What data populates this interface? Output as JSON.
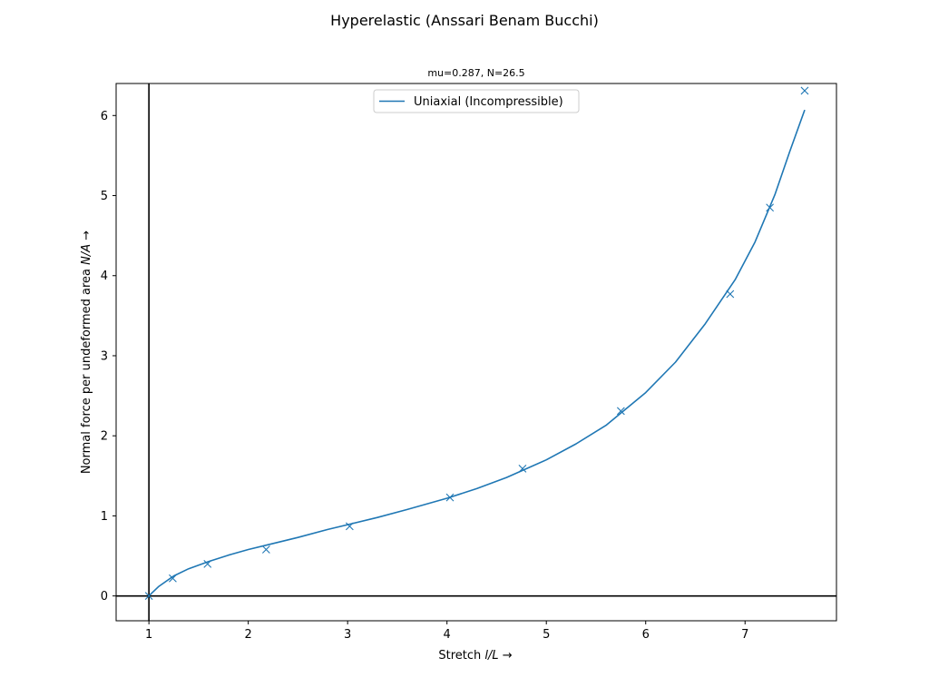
{
  "figure": {
    "title": "Hyperelastic (Anssari Benam Bucchi)",
    "subtitle": "mu=0.287, N=26.5"
  },
  "chart_data": {
    "type": "line",
    "title": "Hyperelastic (Anssari Benam Bucchi)",
    "subtitle": "mu=0.287, N=26.5",
    "xlabel": "Stretch l/L →",
    "ylabel": "Normal force per undeformed area N/A →",
    "xlim": [
      0.67,
      7.92
    ],
    "ylim": [
      -0.31,
      6.4
    ],
    "xticks": [
      1,
      2,
      3,
      4,
      5,
      6,
      7
    ],
    "yticks": [
      0,
      1,
      2,
      3,
      4,
      5,
      6
    ],
    "grid": false,
    "reference_lines": {
      "x": 1,
      "y": 0
    },
    "legend": {
      "position": "top-center",
      "entries": [
        "Uniaxial (Incompressible)"
      ]
    },
    "series": [
      {
        "name": "Uniaxial (Incompressible)",
        "kind": "line",
        "color": "#1f77b4",
        "x": [
          1.0,
          1.1,
          1.25,
          1.4,
          1.6,
          1.8,
          2.0,
          2.2,
          2.5,
          2.8,
          3.0,
          3.3,
          3.6,
          4.0,
          4.3,
          4.6,
          5.0,
          5.3,
          5.6,
          6.0,
          6.3,
          6.6,
          6.9,
          7.1,
          7.3,
          7.45,
          7.6
        ],
        "y": [
          0.0,
          0.12,
          0.25,
          0.34,
          0.43,
          0.51,
          0.58,
          0.64,
          0.73,
          0.83,
          0.89,
          0.98,
          1.08,
          1.22,
          1.34,
          1.48,
          1.7,
          1.9,
          2.13,
          2.54,
          2.92,
          3.4,
          3.95,
          4.42,
          5.01,
          5.55,
          6.07
        ]
      },
      {
        "name": "",
        "kind": "scatter",
        "marker": "x",
        "color": "#1f77b4",
        "x": [
          1.0,
          1.24,
          1.59,
          2.18,
          3.02,
          4.03,
          4.76,
          5.75,
          6.85,
          7.25,
          7.6
        ],
        "y": [
          0.0,
          0.22,
          0.4,
          0.58,
          0.87,
          1.23,
          1.59,
          2.31,
          3.77,
          4.85,
          6.31
        ]
      }
    ]
  }
}
